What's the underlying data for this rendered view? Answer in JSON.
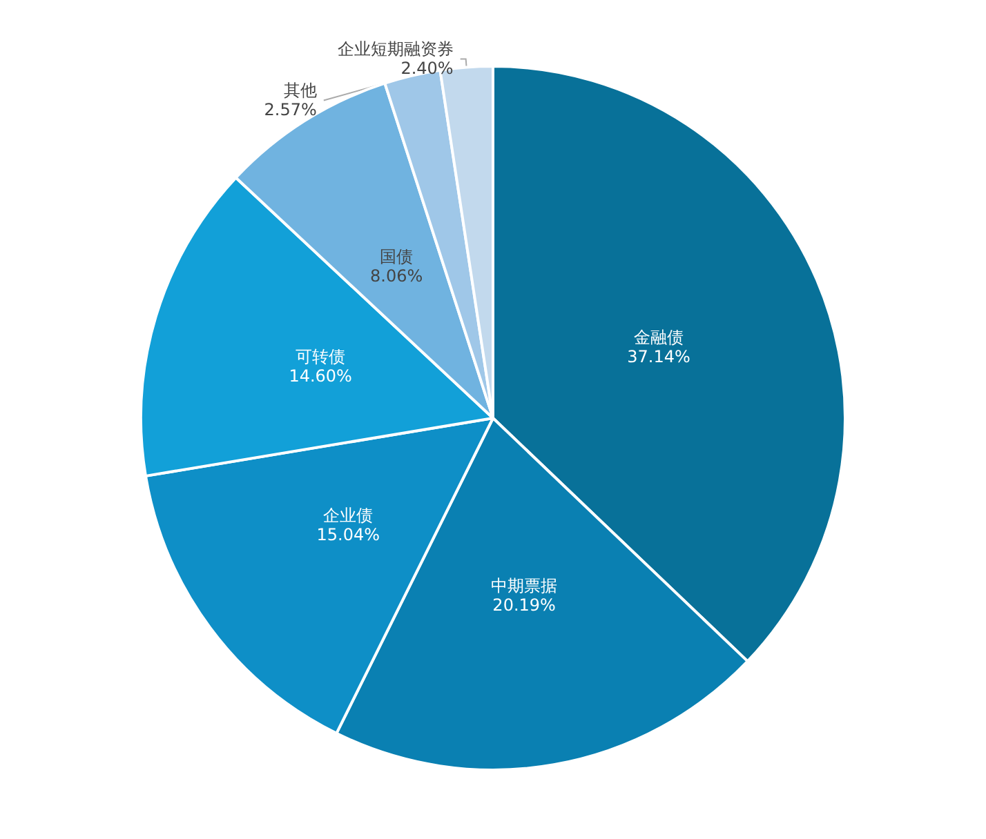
{
  "chart_data": {
    "type": "pie",
    "categories": [
      "金融债",
      "中期票据",
      "企业债",
      "可转债",
      "国债",
      "其他",
      "企业短期融资券"
    ],
    "values": [
      37.14,
      20.19,
      15.04,
      14.6,
      8.06,
      2.57,
      2.4
    ],
    "value_labels": [
      "37.14%",
      "20.19%",
      "15.04%",
      "14.60%",
      "8.06%",
      "2.57%",
      "2.40%"
    ],
    "colors": [
      "#087199",
      "#0a80b2",
      "#0e8fc7",
      "#12a0d8",
      "#70b3e0",
      "#9fc7e8",
      "#c2d9ed"
    ],
    "legend": false
  }
}
